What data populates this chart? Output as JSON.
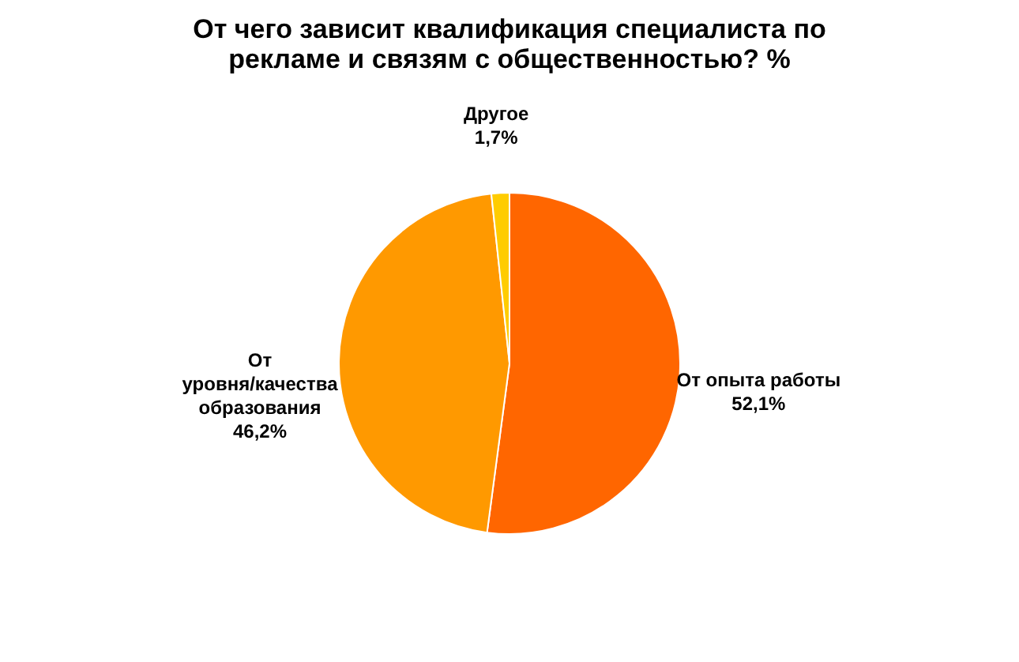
{
  "chart_data": {
    "type": "pie",
    "title": "От чего зависит квалификация специалиста по рекламе и связям с общественностью? %",
    "categories": [
      "От опыта работы",
      "От уровня/качества образования",
      "Другое"
    ],
    "values": [
      52.1,
      46.2,
      1.7
    ],
    "colors": [
      "#ff6600",
      "#ff9900",
      "#ffcc00"
    ],
    "value_labels": [
      "52,1%",
      "46,2%",
      "1,7%"
    ]
  }
}
